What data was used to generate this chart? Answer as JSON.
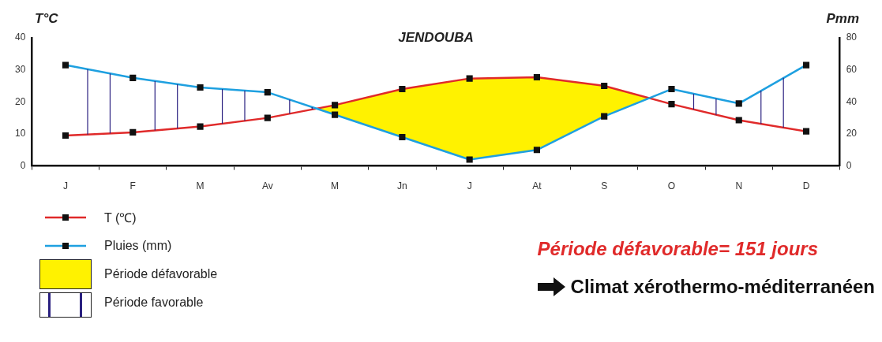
{
  "chart_data": {
    "type": "line",
    "title": "JENDOUBA",
    "ylabel": "T°C",
    "y2label": "Pmm",
    "categories": [
      "J",
      "F",
      "M",
      "Av",
      "M",
      "Jn",
      "J",
      "At",
      "S",
      "O",
      "N",
      "D"
    ],
    "series": [
      {
        "name": "T (℃)",
        "color": "#e02a2a",
        "values": [
          9.5,
          10.5,
          12.3,
          15,
          19,
          24,
          27.3,
          27.7,
          25,
          19.3,
          14.3,
          10.8
        ]
      },
      {
        "name": "Pluies (mm)",
        "color": "#1ea0e0",
        "axis": "y2",
        "values": [
          63,
          55,
          49,
          46,
          32,
          18,
          4,
          10,
          31,
          48,
          39,
          63
        ]
      }
    ],
    "ylim": [
      0,
      40
    ],
    "yticks": [
      0,
      10,
      20,
      30,
      40
    ],
    "y2lim": [
      0,
      80
    ],
    "y2ticks": [
      0,
      20,
      40,
      60,
      80
    ],
    "marker": "square",
    "grid": false,
    "legend": "bottom left",
    "annotations": [
      "Période défavorable",
      "Période favorable",
      "Période défavorable= 151 jours",
      "Climat xérothermo-méditerranéen"
    ]
  }
}
